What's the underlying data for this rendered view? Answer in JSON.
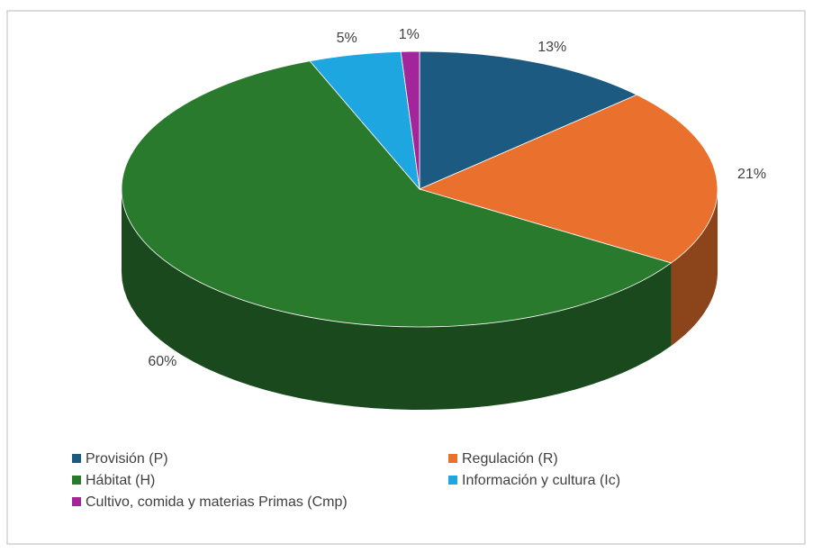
{
  "chart_data": {
    "type": "pie",
    "categories": [
      "Provisión (P)",
      "Regulación (R)",
      "Hábitat (H)",
      "Información y cultura (Ic)",
      "Cultivo, comida y materias Primas (Cmp)"
    ],
    "values": [
      13,
      21,
      60,
      5,
      1
    ],
    "value_labels": [
      "13%",
      "21%",
      "60%",
      "5%",
      "1%"
    ],
    "colors": [
      "#1d5a82",
      "#e9712d",
      "#2a7a2e",
      "#1ea6e0",
      "#a3259b"
    ],
    "legend": "bottom"
  }
}
